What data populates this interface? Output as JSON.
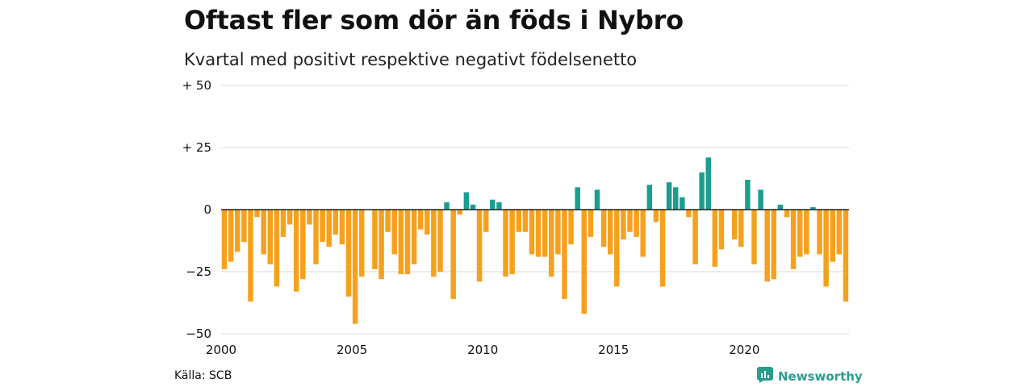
{
  "header": {
    "title": "Oftast fler som dör än föds i Nybro",
    "subtitle": "Kvartal med positivt respektive negativt födelsenetto"
  },
  "footer": {
    "source": "Källa: SCB",
    "brand": "Newsworthy"
  },
  "colors": {
    "positive": "#1a9e8f",
    "negative": "#f6a11c",
    "grid": "#d9d9d9",
    "zero_line": "#222222"
  },
  "chart_data": {
    "type": "bar",
    "title": "Oftast fler som dör än föds i Nybro",
    "subtitle": "Kvartal med positivt respektive negativt födelsenetto",
    "xlabel": "",
    "ylabel": "",
    "x_tick_labels": [
      "2000",
      "2005",
      "2010",
      "2015",
      "2020"
    ],
    "y_tick_labels": [
      "+ 50",
      "+ 25",
      "0",
      "−25",
      "−50"
    ],
    "y_ticks": [
      50,
      25,
      0,
      -25,
      -50
    ],
    "ylim": [
      -50,
      50
    ],
    "grid": true,
    "start_year": 2000,
    "quarters_per_year": 4,
    "values": [
      -24,
      -21,
      -17,
      -13,
      -37,
      -3,
      -18,
      -22,
      -31,
      -11,
      -6,
      -33,
      -28,
      -6,
      -22,
      -13,
      -15,
      -10,
      -14,
      -35,
      -46,
      -27,
      0,
      -24,
      -28,
      -9,
      -18,
      -26,
      -26,
      -22,
      -8,
      -10,
      -27,
      -25,
      3,
      -36,
      -2,
      7,
      2,
      -29,
      -9,
      4,
      3,
      -27,
      -26,
      -9,
      -9,
      -18,
      -19,
      -19,
      -27,
      -18,
      -36,
      -14,
      9,
      -42,
      -11,
      8,
      -15,
      -18,
      -31,
      -12,
      -9,
      -11,
      -19,
      10,
      -5,
      -31,
      11,
      9,
      5,
      -3,
      -22,
      15,
      21,
      -23,
      -16,
      0,
      -12,
      -15,
      12,
      -22,
      8,
      -29,
      -28,
      2,
      -3,
      -24,
      -19,
      -18,
      1,
      -18,
      -31,
      -21,
      -18,
      -37
    ]
  }
}
